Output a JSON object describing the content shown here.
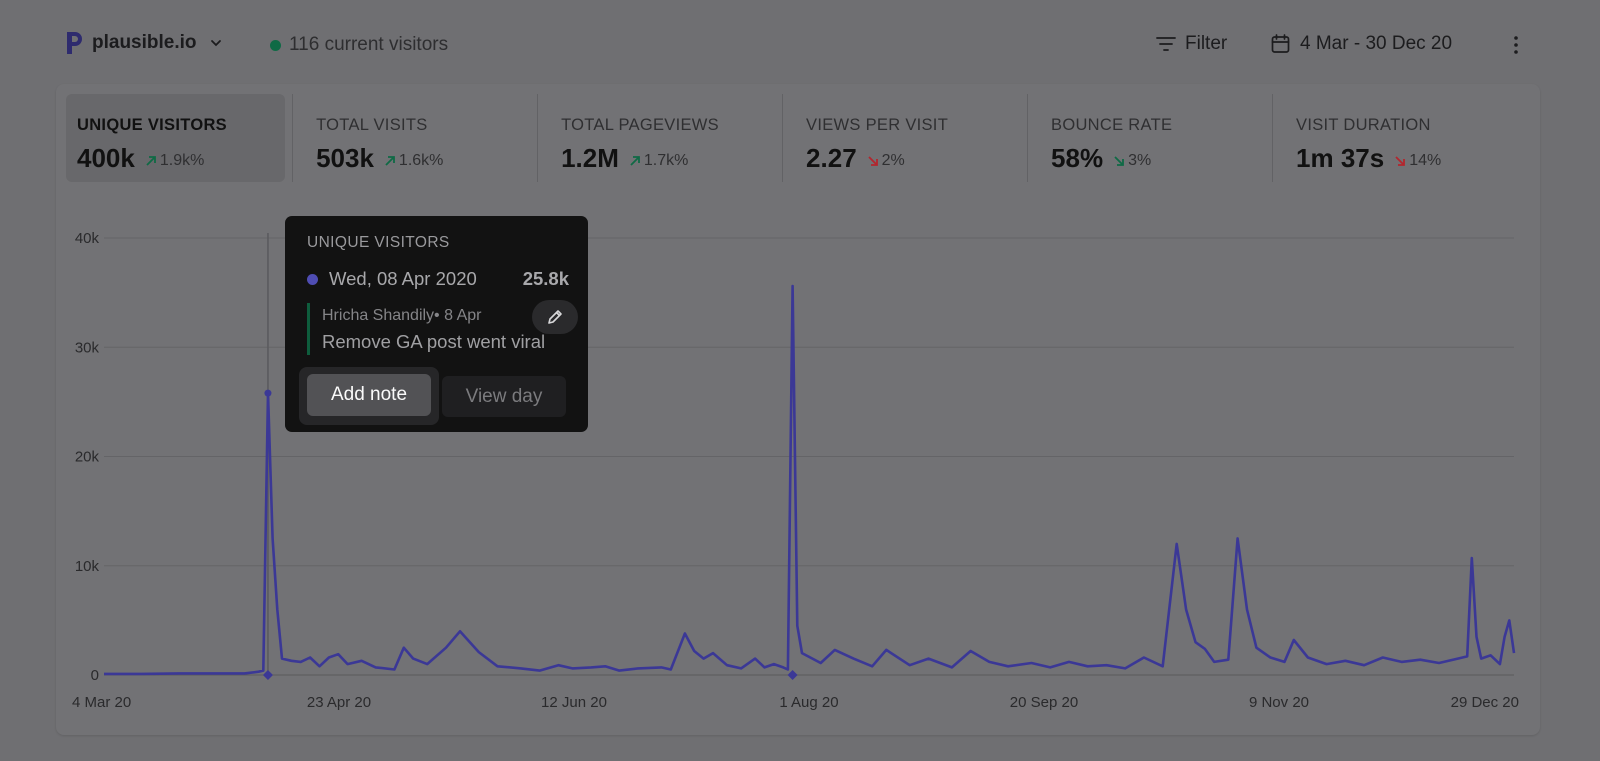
{
  "site": {
    "name": "plausible.io"
  },
  "realtime": {
    "label": "116 current visitors"
  },
  "toolbar": {
    "filter_label": "Filter",
    "date_range": "4 Mar - 30 Dec 20"
  },
  "colors": {
    "line": "#3b3896",
    "up": "#0f6a45",
    "down": "#b3262e"
  },
  "metrics": [
    {
      "label": "UNIQUE VISITORS",
      "value": "400k",
      "change": "1.9k%",
      "direction": "up"
    },
    {
      "label": "TOTAL VISITS",
      "value": "503k",
      "change": "1.6k%",
      "direction": "up"
    },
    {
      "label": "TOTAL PAGEVIEWS",
      "value": "1.2M",
      "change": "1.7k%",
      "direction": "up"
    },
    {
      "label": "VIEWS PER VISIT",
      "value": "2.27",
      "change": "2%",
      "direction": "down-bad"
    },
    {
      "label": "BOUNCE RATE",
      "value": "58%",
      "change": "3%",
      "direction": "down-good"
    },
    {
      "label": "VISIT DURATION",
      "value": "1m 37s",
      "change": "14%",
      "direction": "down-bad"
    }
  ],
  "tooltip": {
    "title": "UNIQUE VISITORS",
    "date": "Wed, 08 Apr 2020",
    "value": "25.8k",
    "note_author": "Hricha Shandily• 8 Apr",
    "note_text": "Remove GA post went viral",
    "add_note_label": "Add note",
    "view_day_label": "View day"
  },
  "chart_data": {
    "type": "line",
    "series_name": "Unique visitors",
    "x_range": [
      "2020-03-04",
      "2020-12-30"
    ],
    "x_ticks": [
      "4 Mar 20",
      "23 Apr 20",
      "12 Jun 20",
      "1 Aug 20",
      "20 Sep 20",
      "9 Nov 20",
      "29 Dec 20"
    ],
    "y_ticks": [
      "0",
      "10k",
      "20k",
      "30k",
      "40k"
    ],
    "ylim": [
      0,
      40000
    ],
    "grid": true,
    "annotated_days": [
      "2020-04-08",
      "2020-07-29"
    ],
    "points": [
      [
        "2020-03-04",
        100
      ],
      [
        "2020-03-12",
        100
      ],
      [
        "2020-03-20",
        150
      ],
      [
        "2020-03-28",
        150
      ],
      [
        "2020-04-03",
        150
      ],
      [
        "2020-04-06",
        300
      ],
      [
        "2020-04-07",
        400
      ],
      [
        "2020-04-08",
        25800
      ],
      [
        "2020-04-09",
        12500
      ],
      [
        "2020-04-10",
        6000
      ],
      [
        "2020-04-11",
        1500
      ],
      [
        "2020-04-13",
        1300
      ],
      [
        "2020-04-15",
        1200
      ],
      [
        "2020-04-17",
        1600
      ],
      [
        "2020-04-19",
        800
      ],
      [
        "2020-04-21",
        1600
      ],
      [
        "2020-04-23",
        1900
      ],
      [
        "2020-04-25",
        1000
      ],
      [
        "2020-04-28",
        1300
      ],
      [
        "2020-05-01",
        700
      ],
      [
        "2020-05-05",
        500
      ],
      [
        "2020-05-07",
        2500
      ],
      [
        "2020-05-09",
        1500
      ],
      [
        "2020-05-12",
        1000
      ],
      [
        "2020-05-16",
        2500
      ],
      [
        "2020-05-19",
        4000
      ],
      [
        "2020-05-23",
        2100
      ],
      [
        "2020-05-27",
        800
      ],
      [
        "2020-06-01",
        600
      ],
      [
        "2020-06-05",
        400
      ],
      [
        "2020-06-09",
        900
      ],
      [
        "2020-06-12",
        600
      ],
      [
        "2020-06-16",
        700
      ],
      [
        "2020-06-19",
        800
      ],
      [
        "2020-06-22",
        400
      ],
      [
        "2020-06-26",
        600
      ],
      [
        "2020-07-01",
        700
      ],
      [
        "2020-07-03",
        500
      ],
      [
        "2020-07-06",
        3800
      ],
      [
        "2020-07-08",
        2200
      ],
      [
        "2020-07-10",
        1500
      ],
      [
        "2020-07-12",
        2000
      ],
      [
        "2020-07-15",
        900
      ],
      [
        "2020-07-18",
        600
      ],
      [
        "2020-07-21",
        1500
      ],
      [
        "2020-07-23",
        700
      ],
      [
        "2020-07-25",
        1000
      ],
      [
        "2020-07-27",
        700
      ],
      [
        "2020-07-28",
        500
      ],
      [
        "2020-07-29",
        35600
      ],
      [
        "2020-07-30",
        4500
      ],
      [
        "2020-07-31",
        2000
      ],
      [
        "2020-08-04",
        1100
      ],
      [
        "2020-08-07",
        2300
      ],
      [
        "2020-08-11",
        1500
      ],
      [
        "2020-08-15",
        800
      ],
      [
        "2020-08-18",
        2300
      ],
      [
        "2020-08-23",
        900
      ],
      [
        "2020-08-27",
        1500
      ],
      [
        "2020-09-01",
        700
      ],
      [
        "2020-09-05",
        2200
      ],
      [
        "2020-09-09",
        1200
      ],
      [
        "2020-09-13",
        800
      ],
      [
        "2020-09-18",
        1100
      ],
      [
        "2020-09-22",
        700
      ],
      [
        "2020-09-26",
        1200
      ],
      [
        "2020-09-30",
        800
      ],
      [
        "2020-10-04",
        900
      ],
      [
        "2020-10-08",
        600
      ],
      [
        "2020-10-12",
        1600
      ],
      [
        "2020-10-16",
        800
      ],
      [
        "2020-10-19",
        12000
      ],
      [
        "2020-10-21",
        6000
      ],
      [
        "2020-10-23",
        3000
      ],
      [
        "2020-10-25",
        2400
      ],
      [
        "2020-10-27",
        1200
      ],
      [
        "2020-10-30",
        1400
      ],
      [
        "2020-11-01",
        12500
      ],
      [
        "2020-11-03",
        6000
      ],
      [
        "2020-11-05",
        2500
      ],
      [
        "2020-11-08",
        1600
      ],
      [
        "2020-11-11",
        1200
      ],
      [
        "2020-11-13",
        3200
      ],
      [
        "2020-11-16",
        1600
      ],
      [
        "2020-11-20",
        1000
      ],
      [
        "2020-11-24",
        1300
      ],
      [
        "2020-11-28",
        900
      ],
      [
        "2020-12-02",
        1600
      ],
      [
        "2020-12-06",
        1200
      ],
      [
        "2020-12-10",
        1400
      ],
      [
        "2020-12-14",
        1100
      ],
      [
        "2020-12-18",
        1500
      ],
      [
        "2020-12-20",
        1700
      ],
      [
        "2020-12-21",
        10700
      ],
      [
        "2020-12-22",
        3500
      ],
      [
        "2020-12-23",
        1500
      ],
      [
        "2020-12-25",
        1800
      ],
      [
        "2020-12-27",
        1000
      ],
      [
        "2020-12-28",
        3500
      ],
      [
        "2020-12-29",
        5000
      ],
      [
        "2020-12-30",
        2000
      ]
    ]
  }
}
